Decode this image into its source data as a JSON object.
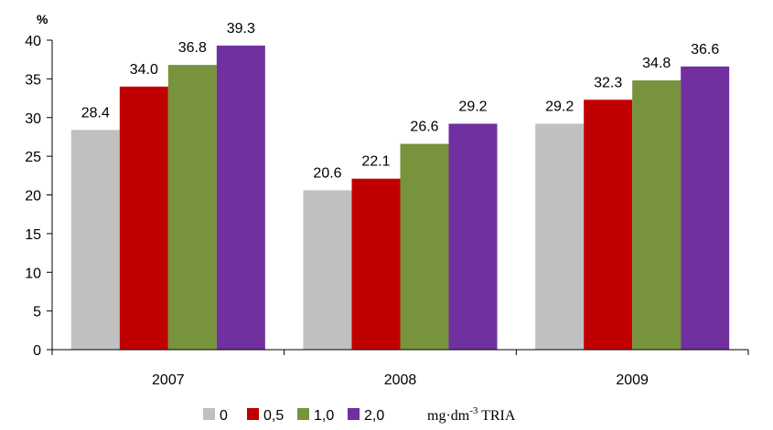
{
  "chart_data": {
    "type": "bar",
    "categories": [
      "2007",
      "2008",
      "2009"
    ],
    "series": [
      {
        "name": "0",
        "color": "#c0c0c0",
        "values": [
          28.4,
          20.6,
          29.2
        ]
      },
      {
        "name": "0,5",
        "color": "#c00000",
        "values": [
          34.0,
          22.1,
          32.3
        ]
      },
      {
        "name": "1,0",
        "color": "#77933c",
        "values": [
          36.8,
          26.6,
          34.8
        ]
      },
      {
        "name": "2,0",
        "color": "#7030a0",
        "values": [
          39.3,
          29.2,
          36.6
        ]
      }
    ],
    "data_labels": [
      [
        "28.4",
        "20.6",
        "29.2"
      ],
      [
        "34.0",
        "22.1",
        "32.3"
      ],
      [
        "36.8",
        "26.6",
        "34.8"
      ],
      [
        "39.3",
        "29.2",
        "36.6"
      ]
    ],
    "ylabel": "%",
    "ylim": [
      0,
      40
    ],
    "yticks": [
      0,
      5,
      10,
      15,
      20,
      25,
      30,
      35,
      40
    ],
    "grid": false,
    "legend": {
      "position": "bottom",
      "unit_base": "mg·dm",
      "unit_sup": "-3",
      "unit_suffix": " TRIA"
    }
  }
}
